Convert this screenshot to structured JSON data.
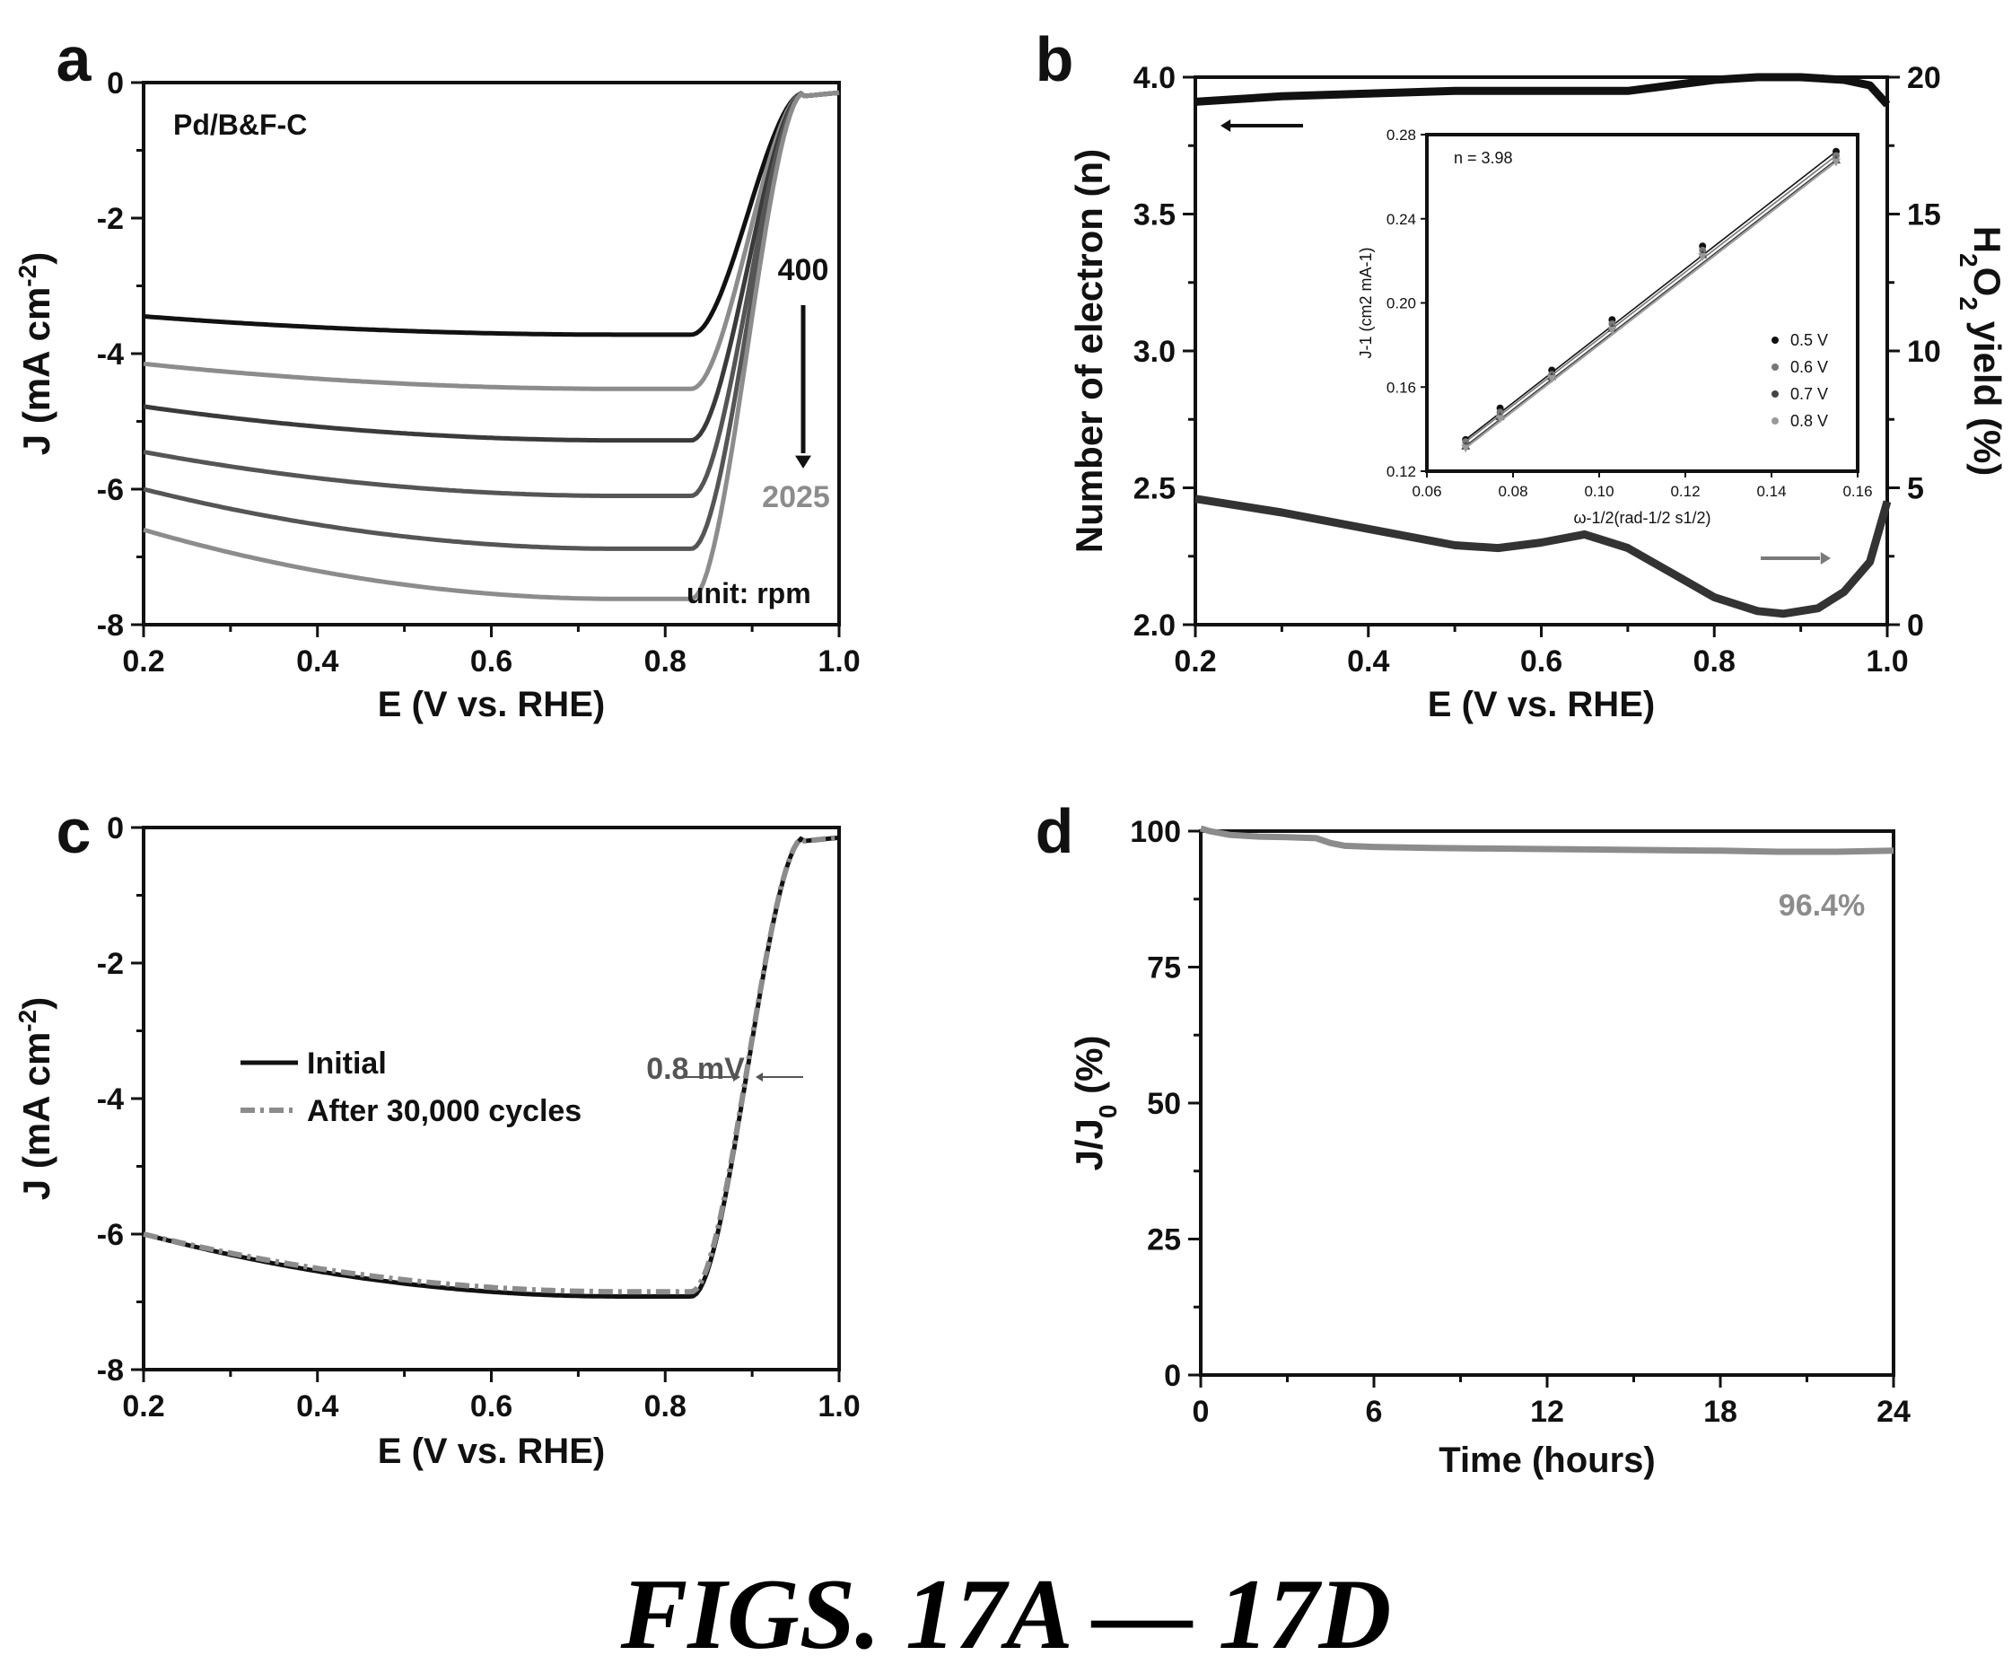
{
  "caption": "FIGS. 17A — 17D",
  "colors": {
    "black": "#111111",
    "gray": "#8c8c8c",
    "dark_gray": "#3a3a3a",
    "mid_gray": "#555555",
    "light_gray": "#7a7a7a"
  },
  "chart_data": [
    {
      "panel": "a",
      "type": "line",
      "xlabel": "E (V vs. RHE)",
      "ylabel": "J (mA cm",
      "ylabel_sup": "-2",
      "ylabel_end": ")",
      "xlim": [
        0.2,
        1.0
      ],
      "ylim": [
        -8,
        0
      ],
      "x_ticks": [
        "0.2",
        "0.4",
        "0.6",
        "0.8",
        "1.0"
      ],
      "y_ticks": [
        "0",
        "-2",
        "-4",
        "-6",
        "-8"
      ],
      "annotations": {
        "sample": "Pd/B&F-C",
        "rpm_start": "400",
        "rpm_end": "2025",
        "unit": "unit: rpm"
      },
      "series": [
        {
          "plateau_start": -3.45,
          "plateau_min": -3.72,
          "color": "black"
        },
        {
          "plateau_start": -4.15,
          "plateau_min": -4.52,
          "color": "gray"
        },
        {
          "plateau_start": -4.78,
          "plateau_min": -5.28,
          "color": "dark_gray"
        },
        {
          "plateau_start": -5.45,
          "plateau_min": -6.1,
          "color": "mid_gray"
        },
        {
          "plateau_start": -6.0,
          "plateau_min": -6.88,
          "color": "mid_gray"
        },
        {
          "plateau_start": -6.6,
          "plateau_min": -7.62,
          "color": "gray"
        }
      ]
    },
    {
      "panel": "b",
      "type": "line",
      "xlabel": "E (V vs. RHE)",
      "ylabel_left": "Number of electron (n)",
      "ylabel_right": "H2O2 yield (%)",
      "xlim": [
        0.2,
        1.0
      ],
      "ylim_left": [
        2.0,
        4.0
      ],
      "ylim_right": [
        0,
        20
      ],
      "x_ticks": [
        "0.2",
        "0.4",
        "0.6",
        "0.8",
        "1.0"
      ],
      "y_ticks_left": [
        "4.0",
        "3.5",
        "3.0",
        "2.5",
        "2.0"
      ],
      "y_ticks_right": [
        "20",
        "15",
        "10",
        "5",
        "0"
      ],
      "series": [
        {
          "name": "n",
          "axis": "left",
          "x": [
            0.2,
            0.3,
            0.4,
            0.5,
            0.6,
            0.7,
            0.75,
            0.8,
            0.85,
            0.9,
            0.95,
            0.98,
            1.0
          ],
          "y": [
            3.91,
            3.93,
            3.94,
            3.95,
            3.95,
            3.95,
            3.97,
            3.99,
            4.0,
            4.0,
            3.99,
            3.97,
            3.9
          ]
        },
        {
          "name": "H2O2",
          "axis": "right",
          "x": [
            0.2,
            0.3,
            0.4,
            0.5,
            0.55,
            0.6,
            0.65,
            0.7,
            0.75,
            0.8,
            0.85,
            0.88,
            0.92,
            0.95,
            0.98,
            1.0
          ],
          "y": [
            4.6,
            4.1,
            3.5,
            2.9,
            2.8,
            3.0,
            3.3,
            2.8,
            1.9,
            1.0,
            0.5,
            0.4,
            0.6,
            1.2,
            2.3,
            4.5
          ]
        }
      ],
      "inset": {
        "annotation": "n = 3.98",
        "xlabel": "ω-1/2(rad-1/2 s1/2)",
        "ylabel": "J-1 (cm2 mA-1)",
        "xlim": [
          0.06,
          0.16
        ],
        "ylim": [
          0.12,
          0.28
        ],
        "x_ticks": [
          "0.06",
          "0.08",
          "0.10",
          "0.12",
          "0.14",
          "0.16"
        ],
        "y_ticks": [
          "0.12",
          "0.16",
          "0.20",
          "0.24",
          "0.28"
        ],
        "x": [
          0.069,
          0.077,
          0.089,
          0.103,
          0.124,
          0.155
        ],
        "series": [
          {
            "name": "0.5 V",
            "y": [
              0.135,
              0.15,
              0.168,
              0.192,
              0.227,
              0.272
            ]
          },
          {
            "name": "0.6 V",
            "y": [
              0.134,
              0.148,
              0.166,
              0.19,
              0.225,
              0.27
            ]
          },
          {
            "name": "0.7 V",
            "y": [
              0.132,
              0.146,
              0.165,
              0.188,
              0.223,
              0.268
            ]
          },
          {
            "name": "0.8 V",
            "y": [
              0.131,
              0.145,
              0.164,
              0.187,
              0.222,
              0.267
            ]
          }
        ]
      }
    },
    {
      "panel": "c",
      "type": "line",
      "xlabel": "E (V vs. RHE)",
      "ylabel": "J (mA cm",
      "ylabel_sup": "-2",
      "ylabel_end": ")",
      "xlim": [
        0.2,
        1.0
      ],
      "ylim": [
        -8,
        0
      ],
      "x_ticks": [
        "0.2",
        "0.4",
        "0.6",
        "0.8",
        "1.0"
      ],
      "y_ticks": [
        "0",
        "-2",
        "-4",
        "-6",
        "-8"
      ],
      "annotation": "0.8 mV",
      "series": [
        {
          "name": "Initial",
          "plateau_start": -6.0,
          "plateau_min": -6.92,
          "color": "black"
        },
        {
          "name": "After 30,000 cycles",
          "plateau_start": -6.0,
          "plateau_min": -6.85,
          "color": "gray"
        }
      ]
    },
    {
      "panel": "d",
      "type": "line",
      "xlabel": "Time (hours)",
      "ylabel": "J/J",
      "ylabel_sub": "0",
      "ylabel_end": " (%)",
      "xlim": [
        0,
        24
      ],
      "ylim": [
        0,
        100
      ],
      "x_ticks": [
        "0",
        "6",
        "12",
        "18",
        "24"
      ],
      "y_ticks": [
        "100",
        "75",
        "50",
        "25",
        "0"
      ],
      "annotation": "96.4%",
      "series": [
        {
          "x": [
            0,
            0.3,
            1,
            2,
            3,
            4,
            4.5,
            5,
            6,
            8,
            10,
            12,
            14,
            16,
            18,
            20,
            22,
            24
          ],
          "y": [
            100.5,
            100,
            99.3,
            99,
            98.9,
            98.7,
            97.8,
            97.3,
            97.1,
            96.9,
            96.8,
            96.7,
            96.6,
            96.5,
            96.4,
            96.2,
            96.2,
            96.4
          ]
        }
      ]
    }
  ]
}
